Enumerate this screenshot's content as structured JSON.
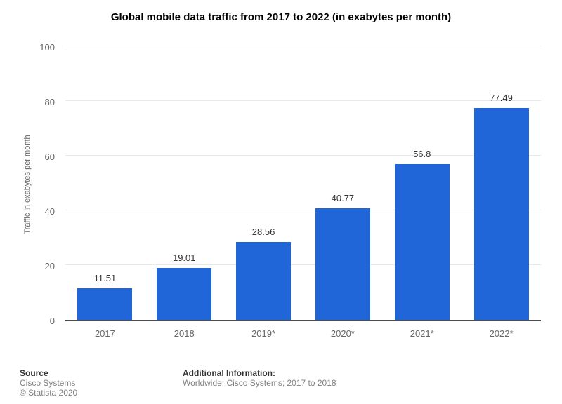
{
  "chart_data": {
    "type": "bar",
    "title": "Global mobile data traffic from 2017 to 2022 (in exabytes per month)",
    "categories": [
      "2017",
      "2018",
      "2019*",
      "2020*",
      "2021*",
      "2022*"
    ],
    "values": [
      11.51,
      19.01,
      28.56,
      40.77,
      56.8,
      77.49
    ],
    "value_labels": [
      "11.51",
      "19.01",
      "28.56",
      "40.77",
      "56.8",
      "77.49"
    ],
    "xlabel": "",
    "ylabel": "Traffic in exabytes per month",
    "ylim": [
      0,
      100
    ],
    "yticks": [
      0,
      20,
      40,
      60,
      80,
      100
    ],
    "grid": true,
    "legend": false,
    "bar_color": "#2066d9",
    "gridline_color": "#e8e8e8",
    "axis_line_color": "#4d4d4d",
    "value_label_color": "#333333",
    "tick_label_color": "#666666"
  },
  "footer": {
    "source_label": "Source",
    "source_lines": [
      "Cisco Systems",
      "© Statista 2020"
    ],
    "additional_label": "Additional Information:",
    "additional_lines": [
      "Worldwide; Cisco Systems; 2017 to 2018"
    ]
  }
}
